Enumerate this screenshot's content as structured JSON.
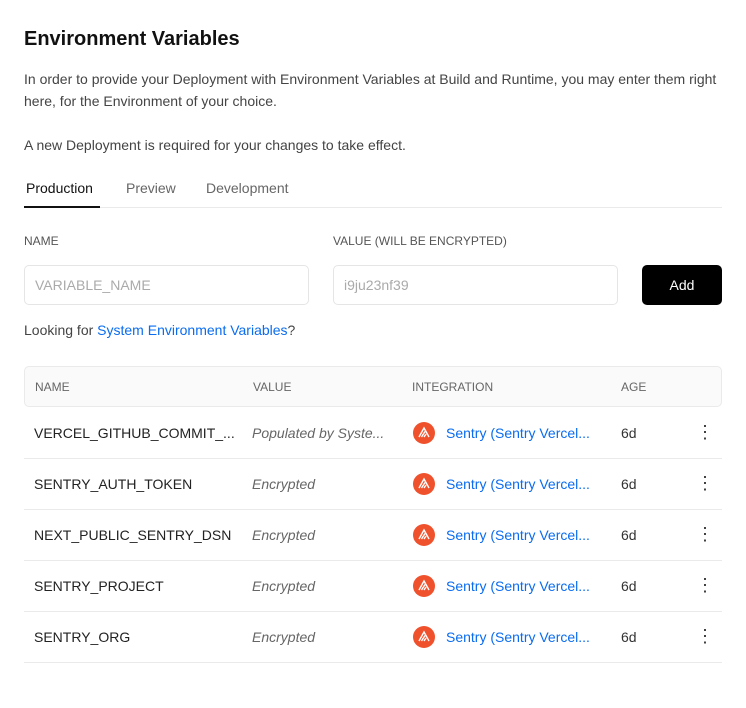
{
  "title": "Environment Variables",
  "description": "In order to provide your Deployment with Environment Variables at Build and Runtime, you may enter them right here, for the Environment of your choice.",
  "notice": "A new Deployment is required for your changes to take effect.",
  "tabs": [
    {
      "label": "Production",
      "active": true
    },
    {
      "label": "Preview"
    },
    {
      "label": "Development"
    }
  ],
  "form": {
    "name_label": "NAME",
    "value_label": "VALUE (WILL BE ENCRYPTED)",
    "name_placeholder": "VARIABLE_NAME",
    "value_placeholder": "i9ju23nf39",
    "add_label": "Add"
  },
  "system_hint": {
    "prefix": "Looking for ",
    "link": "System Environment Variables",
    "suffix": "?"
  },
  "table": {
    "headers": [
      "NAME",
      "VALUE",
      "INTEGRATION",
      "AGE"
    ],
    "rows": [
      {
        "name": "VERCEL_GITHUB_COMMIT_...",
        "value": "Populated by Syste...",
        "integration": "Sentry (Sentry Vercel...",
        "age": "6d",
        "icon": "sentry-icon"
      },
      {
        "name": "SENTRY_AUTH_TOKEN",
        "value": "Encrypted",
        "integration": "Sentry (Sentry Vercel...",
        "age": "6d",
        "icon": "sentry-icon"
      },
      {
        "name": "NEXT_PUBLIC_SENTRY_DSN",
        "value": "Encrypted",
        "integration": "Sentry (Sentry Vercel...",
        "age": "6d",
        "icon": "sentry-icon"
      },
      {
        "name": "SENTRY_PROJECT",
        "value": "Encrypted",
        "integration": "Sentry (Sentry Vercel...",
        "age": "6d",
        "icon": "sentry-icon"
      },
      {
        "name": "SENTRY_ORG",
        "value": "Encrypted",
        "integration": "Sentry (Sentry Vercel...",
        "age": "6d",
        "icon": "sentry-icon"
      }
    ]
  },
  "colors": {
    "link": "#0a6cf0",
    "sentry": "#f0512d",
    "button": "#000000"
  }
}
